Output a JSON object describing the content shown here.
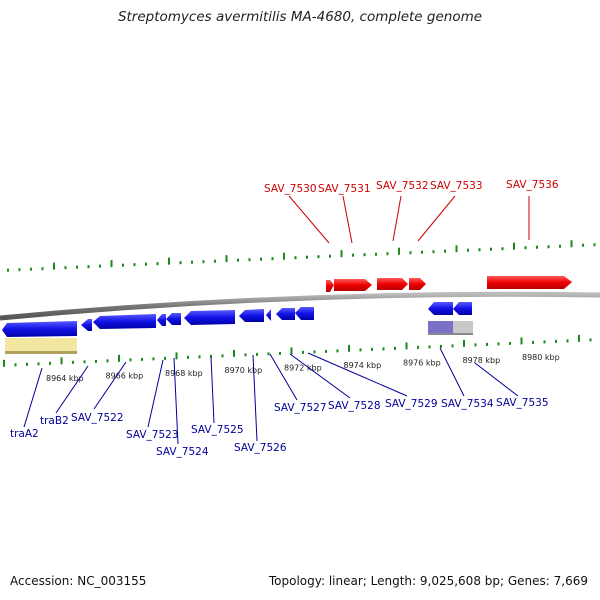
{
  "title": "Streptomyces avermitilis MA-4680, complete genome",
  "footer": {
    "accession_label": "Accession: NC_003155",
    "topology_label": "Topology: linear; Length: 9,025,608 bp; Genes: 7,669"
  },
  "colors": {
    "forward_gene": "#e60000",
    "reverse_gene": "#1010e0",
    "forward_label": "#cc0000",
    "reverse_label": "#000099",
    "genome_line": "#888888",
    "tick": "#1a8a1a",
    "feature_yellow": "#f3e6a0",
    "feature_purple": "#7a70c8",
    "feature_grey": "#c8c8c8"
  },
  "scale_labels": [
    "8964 kbp",
    "8966 kbp",
    "8968 kbp",
    "8970 kbp",
    "8972 kbp",
    "8974 kbp",
    "8976 kbp",
    "8978 kbp",
    "8980 kbp"
  ],
  "forward_genes": [
    {
      "label": "SAV_7530"
    },
    {
      "label": "SAV_7531"
    },
    {
      "label": "SAV_7532"
    },
    {
      "label": "SAV_7533"
    },
    {
      "label": "SAV_7536"
    }
  ],
  "reverse_genes": [
    {
      "label": "traA2"
    },
    {
      "label": "traB2"
    },
    {
      "label": "SAV_7522"
    },
    {
      "label": "SAV_7523"
    },
    {
      "label": "SAV_7524"
    },
    {
      "label": "SAV_7525"
    },
    {
      "label": "SAV_7526"
    },
    {
      "label": "SAV_7527"
    },
    {
      "label": "SAV_7528"
    },
    {
      "label": "SAV_7529"
    },
    {
      "label": "SAV_7534"
    },
    {
      "label": "SAV_7535"
    }
  ]
}
